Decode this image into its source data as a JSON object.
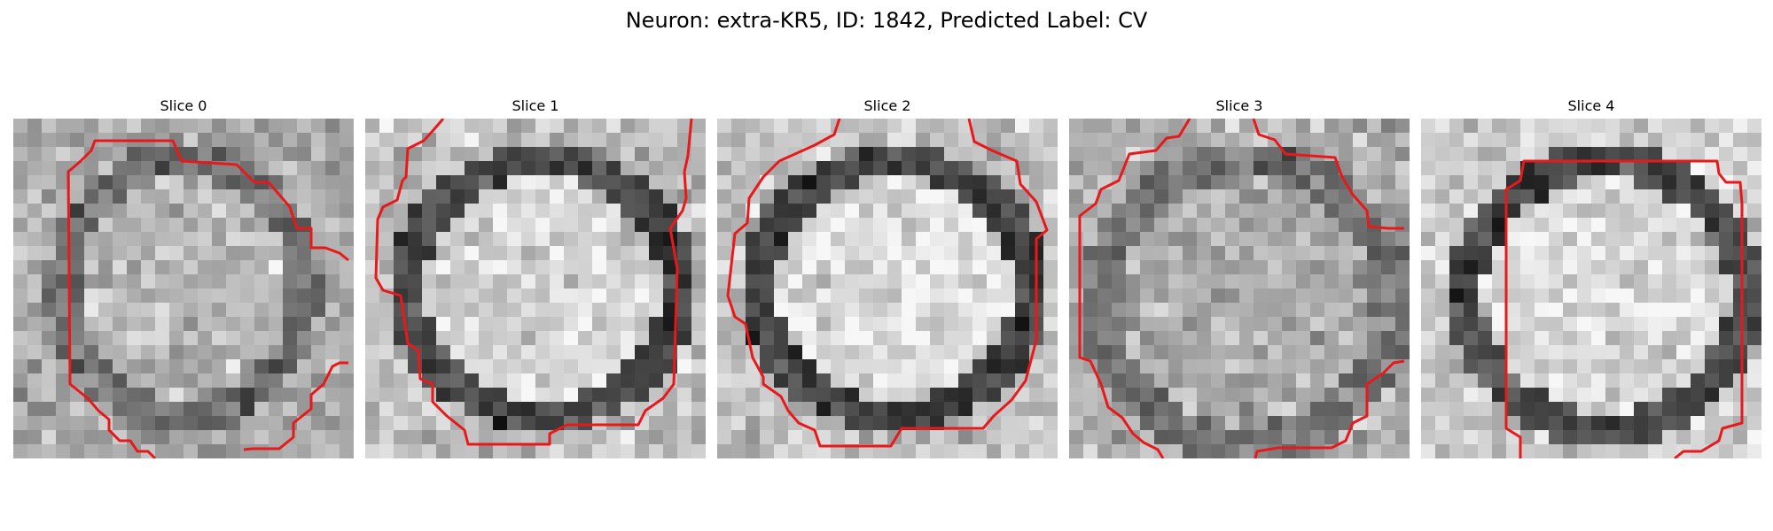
{
  "figure": {
    "title": "Neuron: extra-KR5, ID: 1842, Predicted Label: CV"
  },
  "slices": [
    {
      "title": "Slice 0"
    },
    {
      "title": "Slice 1"
    },
    {
      "title": "Slice 2"
    },
    {
      "title": "Slice 3"
    },
    {
      "title": "Slice 4"
    }
  ],
  "colors": {
    "contour": "#e8191b",
    "background": "#ffffff"
  }
}
